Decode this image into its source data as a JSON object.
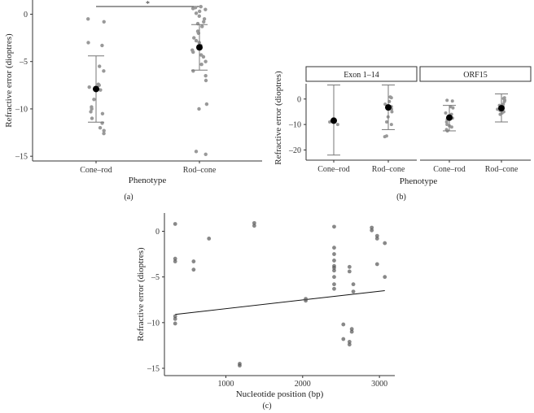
{
  "chart_data": [
    {
      "panel": "(a)",
      "type": "scatter",
      "xlabel": "Phenotype",
      "ylabel": "Refractive error (dioptres)",
      "categories": [
        "Cone–rod",
        "Rod–cone"
      ],
      "ylim": [
        -15.5,
        1.5
      ],
      "yticks": [
        0,
        -5,
        -10,
        -15
      ],
      "significance": "*",
      "groups": [
        {
          "category": "Cone–rod",
          "mean": -7.9,
          "sd_low": -11.4,
          "sd_high": -4.4,
          "points": [
            -0.5,
            -0.8,
            -3.0,
            -3.3,
            -5.5,
            -6.0,
            -7.4,
            -7.7,
            -8.0,
            -9.0,
            -9.8,
            -10.0,
            -10.5,
            -10.3,
            -11.0,
            -12.0,
            -12.3,
            -12.6,
            -11.5,
            -7.5
          ]
        },
        {
          "category": "Rod–cone",
          "mean": -3.5,
          "sd_low": -5.9,
          "sd_high": -1.1,
          "points": [
            0.8,
            0.7,
            0.6,
            0.5,
            0.3,
            0.1,
            -0.2,
            -0.5,
            -0.8,
            -1.0,
            -1.3,
            -1.8,
            -2.0,
            -2.5,
            -2.8,
            -3.0,
            -3.3,
            -3.8,
            -4.0,
            -4.3,
            -4.5,
            -5.0,
            -5.3,
            -6.0,
            -6.5,
            -7.0,
            -9.5,
            -10.0,
            -14.5,
            -14.8
          ]
        }
      ]
    },
    {
      "panel": "(b)",
      "type": "scatter",
      "xlabel": "Phenotype",
      "ylabel": "Refractive error (dioptres)",
      "facets": [
        "Exon 1–14",
        "ORF15"
      ],
      "categories": [
        "Cone–rod",
        "Rod–cone"
      ],
      "ylim": [
        -24,
        6
      ],
      "yticks": [
        0,
        -10,
        -20
      ],
      "groups": [
        {
          "facet": "Exon 1–14",
          "category": "Cone–rod",
          "mean": -8.5,
          "sd_low": -22.0,
          "sd_high": 5.5,
          "points": [
            -9.0,
            -10.0
          ]
        },
        {
          "facet": "Exon 1–14",
          "category": "Rod–cone",
          "mean": -3.3,
          "sd_low": -12.0,
          "sd_high": 5.5,
          "points": [
            0.8,
            0.5,
            -1.0,
            -2.0,
            -3.0,
            -4.0,
            -5.0,
            -7.0,
            -9.0,
            -10.0,
            -14.5,
            -14.8
          ]
        },
        {
          "facet": "ORF15",
          "category": "Cone–rod",
          "mean": -7.3,
          "sd_low": -12.5,
          "sd_high": -2.5,
          "points": [
            -0.5,
            -0.8,
            -3.0,
            -3.5,
            -5.5,
            -6.0,
            -7.5,
            -8.0,
            -9.0,
            -10.0,
            -10.5,
            -11.0,
            -12.0,
            -12.5
          ]
        },
        {
          "facet": "ORF15",
          "category": "Rod–cone",
          "mean": -3.6,
          "sd_low": -9.0,
          "sd_high": 2.0,
          "points": [
            0.5,
            0.2,
            -0.5,
            -1.0,
            -2.0,
            -2.5,
            -3.0,
            -3.5,
            -4.0,
            -4.5,
            -5.0,
            -5.5,
            -6.0
          ]
        }
      ]
    },
    {
      "panel": "(c)",
      "type": "scatter",
      "xlabel": "Nucleotide position (bp)",
      "ylabel": "Refractive error (dioptres)",
      "xlim": [
        200,
        3200
      ],
      "ylim": [
        -15.8,
        2.0
      ],
      "xticks": [
        1000,
        2000,
        3000
      ],
      "yticks": [
        0,
        -5,
        -10,
        -15
      ],
      "points": [
        [
          340,
          0.8
        ],
        [
          340,
          -3.0
        ],
        [
          340,
          -3.3
        ],
        [
          340,
          -9.3
        ],
        [
          340,
          -9.6
        ],
        [
          340,
          -10.1
        ],
        [
          580,
          -3.3
        ],
        [
          580,
          -4.2
        ],
        [
          780,
          -0.8
        ],
        [
          1180,
          -14.5
        ],
        [
          1180,
          -14.7
        ],
        [
          1370,
          0.9
        ],
        [
          1370,
          0.6
        ],
        [
          2040,
          -7.4
        ],
        [
          2040,
          -7.6
        ],
        [
          2410,
          0.5
        ],
        [
          2410,
          -1.8
        ],
        [
          2410,
          -2.5
        ],
        [
          2410,
          -3.2
        ],
        [
          2410,
          -3.8
        ],
        [
          2410,
          -4.0
        ],
        [
          2410,
          -4.3
        ],
        [
          2410,
          -5.0
        ],
        [
          2410,
          -5.8
        ],
        [
          2410,
          -6.3
        ],
        [
          2530,
          -10.2
        ],
        [
          2530,
          -11.8
        ],
        [
          2610,
          -3.9
        ],
        [
          2610,
          -4.4
        ],
        [
          2610,
          -12.1
        ],
        [
          2610,
          -12.4
        ],
        [
          2640,
          -10.7
        ],
        [
          2640,
          -11.0
        ],
        [
          2660,
          -5.8
        ],
        [
          2660,
          -6.6
        ],
        [
          2900,
          0.4
        ],
        [
          2900,
          0.1
        ],
        [
          2970,
          -0.5
        ],
        [
          2970,
          -0.8
        ],
        [
          2970,
          -3.6
        ],
        [
          3070,
          -1.3
        ],
        [
          3070,
          -5.0
        ]
      ],
      "trendline": [
        [
          340,
          -9.1
        ],
        [
          3070,
          -6.5
        ]
      ]
    }
  ],
  "labels": {
    "panel_a": "(a)",
    "panel_b": "(b)",
    "panel_c": "(c)"
  }
}
